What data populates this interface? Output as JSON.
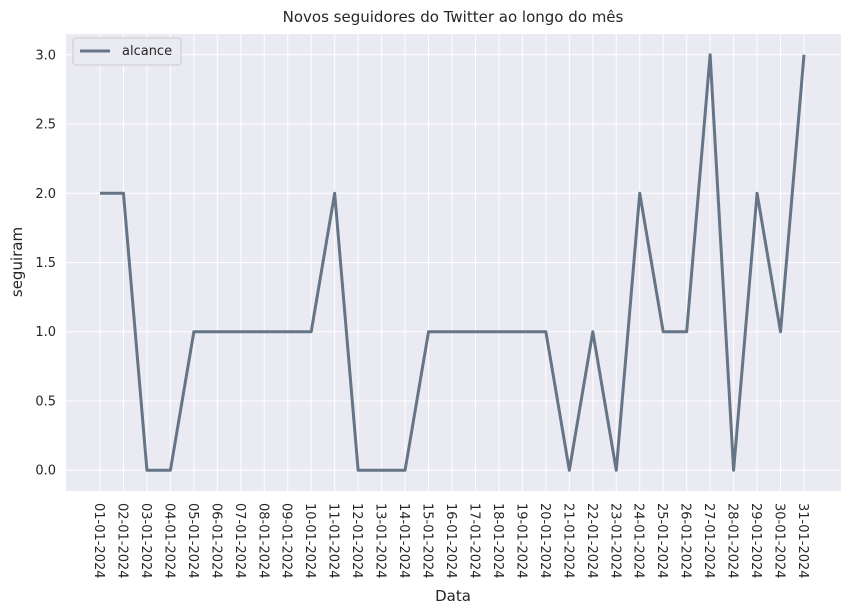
{
  "chart_data": {
    "type": "line",
    "title": "Novos seguidores do Twitter ao longo do mês",
    "xlabel": "Data",
    "ylabel": "seguiram",
    "categories": [
      "01-01-2024",
      "02-01-2024",
      "03-01-2024",
      "04-01-2024",
      "05-01-2024",
      "06-01-2024",
      "07-01-2024",
      "08-01-2024",
      "09-01-2024",
      "10-01-2024",
      "11-01-2024",
      "12-01-2024",
      "13-01-2024",
      "14-01-2024",
      "15-01-2024",
      "16-01-2024",
      "17-01-2024",
      "18-01-2024",
      "19-01-2024",
      "20-01-2024",
      "21-01-2024",
      "22-01-2024",
      "23-01-2024",
      "24-01-2024",
      "25-01-2024",
      "26-01-2024",
      "27-01-2024",
      "28-01-2024",
      "29-01-2024",
      "30-01-2024",
      "31-01-2024"
    ],
    "series": [
      {
        "name": "alcance",
        "color": "#657585",
        "values": [
          2,
          2,
          0,
          0,
          1,
          1,
          1,
          1,
          1,
          1,
          2,
          0,
          0,
          0,
          1,
          1,
          1,
          1,
          1,
          1,
          0,
          1,
          0,
          2,
          1,
          1,
          3,
          0,
          2,
          1,
          3
        ]
      }
    ],
    "ylim": [
      -0.15,
      3.15
    ],
    "yticks": [
      0.0,
      0.5,
      1.0,
      1.5,
      2.0,
      2.5,
      3.0
    ],
    "ytick_labels": [
      "0.0",
      "0.5",
      "1.0",
      "1.5",
      "2.0",
      "2.5",
      "3.0"
    ],
    "grid": true,
    "legend_position": "top-left",
    "background_color": "#eaeaf2",
    "grid_color": "#ffffff"
  }
}
